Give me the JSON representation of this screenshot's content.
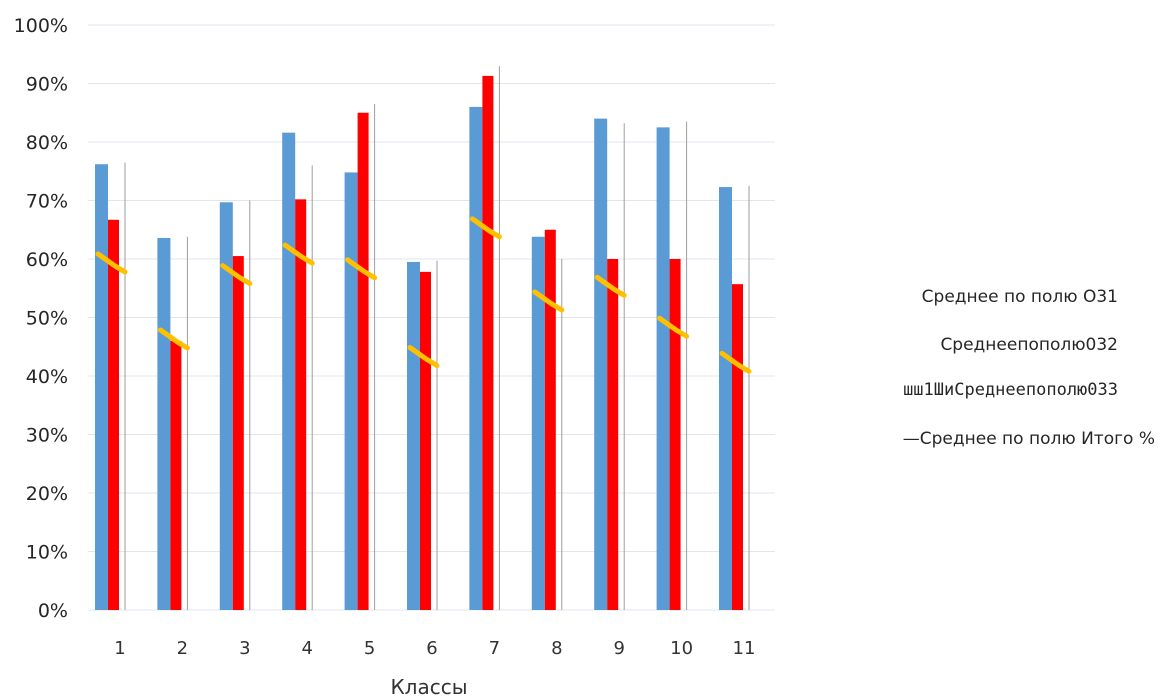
{
  "chart_data": {
    "type": "bar",
    "title": "",
    "xlabel": "Классы",
    "ylabel": "",
    "ylim": [
      0,
      100
    ],
    "y_ticks": [
      "0%",
      "10%",
      "20%",
      "30%",
      "40%",
      "50%",
      "60%",
      "70%",
      "80%",
      "90%",
      "100%"
    ],
    "y_tick_values": [
      0,
      10,
      20,
      30,
      40,
      50,
      60,
      70,
      80,
      90,
      100
    ],
    "categories": [
      "1",
      "2",
      "3",
      "4",
      "5",
      "6",
      "7",
      "8",
      "9",
      "10",
      "11"
    ],
    "grid": true,
    "legend_position": "right",
    "series": [
      {
        "name": "Среднее по полю О31",
        "type": "bar",
        "color": "#5b9bd5",
        "values": [
          76.2,
          63.6,
          69.7,
          81.6,
          74.8,
          59.5,
          86,
          63.8,
          84,
          82.5,
          72.3
        ]
      },
      {
        "name": "Среднеепополю032",
        "type": "bar",
        "color": "#ff0000",
        "values": [
          66.7,
          46,
          60.5,
          70.2,
          85,
          57.8,
          91.3,
          65,
          60,
          60,
          55.7
        ]
      },
      {
        "name": "шш1ШиСреднеепополю033",
        "type": "bar",
        "color": "#9e9e9e",
        "values": [
          76.5,
          63.8,
          70,
          76,
          86.5,
          59.7,
          93,
          60,
          83.2,
          83.5,
          72.5
        ]
      },
      {
        "name": "—Среднее по полю Итого %",
        "type": "line",
        "color": "#ffc000",
        "values": [
          59.5,
          46.5,
          57.5,
          61,
          58.5,
          43.5,
          65.5,
          53,
          55.5,
          48.5,
          42.5
        ]
      }
    ]
  }
}
